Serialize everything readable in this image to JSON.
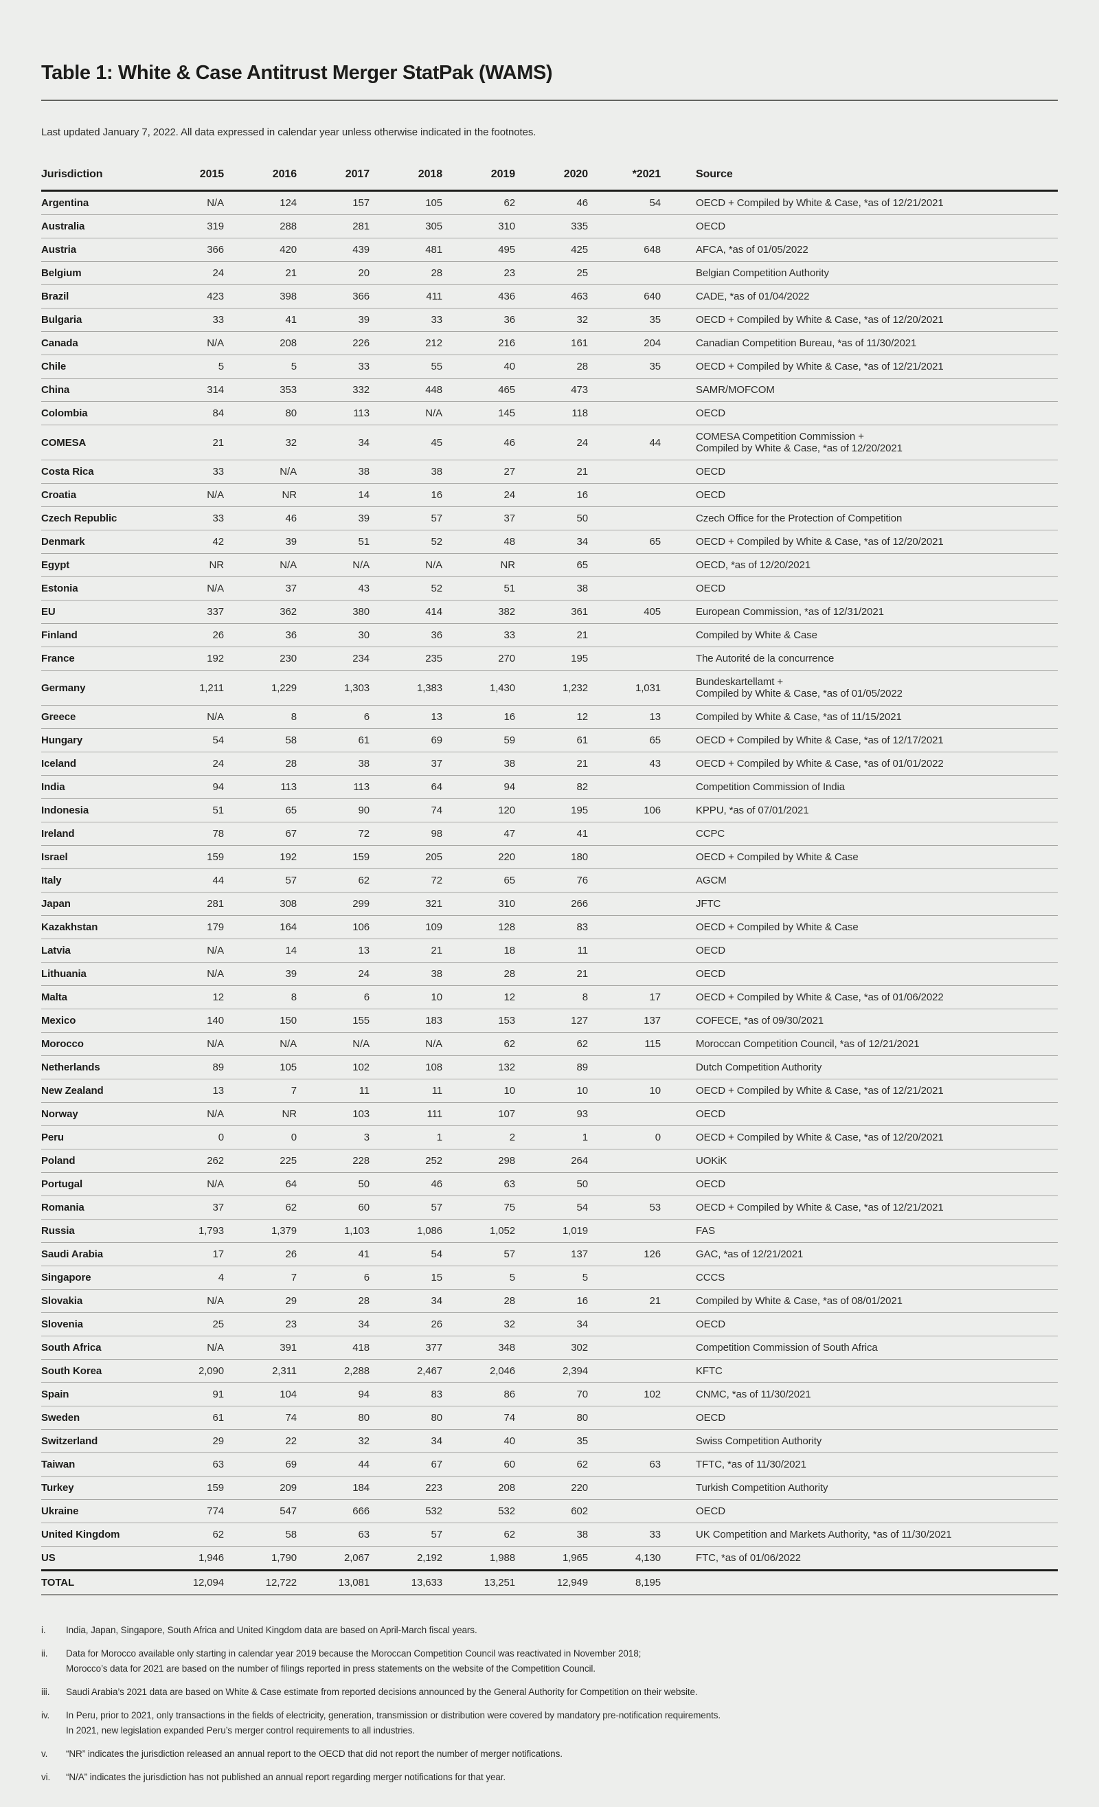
{
  "page": {
    "title": "Table 1: White & Case Antitrust Merger StatPak (WAMS)",
    "subtitle": "Last updated January 7, 2022. All data expressed in calendar year unless otherwise indicated in the footnotes."
  },
  "colors": {
    "background": "#edeeec",
    "text": "#1d1d1b",
    "text_secondary": "#2d2d2a",
    "rule_thin": "#a6a6a3",
    "rule_thick": "#1d1d1b",
    "rule_medium": "#8f8f8c",
    "title_rule": "#63645f"
  },
  "table": {
    "columns": [
      "Jurisdiction",
      "2015",
      "2016",
      "2017",
      "2018",
      "2019",
      "2020",
      "*2021",
      "Source"
    ],
    "rows": [
      {
        "jurisdiction": "Argentina",
        "values": [
          "N/A",
          "124",
          "157",
          "105",
          "62",
          "46",
          "54"
        ],
        "source": "OECD + Compiled by White & Case, *as of 12/21/2021"
      },
      {
        "jurisdiction": "Australia",
        "values": [
          "319",
          "288",
          "281",
          "305",
          "310",
          "335",
          ""
        ],
        "source": "OECD"
      },
      {
        "jurisdiction": "Austria",
        "values": [
          "366",
          "420",
          "439",
          "481",
          "495",
          "425",
          "648"
        ],
        "source": "AFCA, *as of 01/05/2022"
      },
      {
        "jurisdiction": "Belgium",
        "values": [
          "24",
          "21",
          "20",
          "28",
          "23",
          "25",
          ""
        ],
        "source": "Belgian Competition Authority"
      },
      {
        "jurisdiction": "Brazil",
        "values": [
          "423",
          "398",
          "366",
          "411",
          "436",
          "463",
          "640"
        ],
        "source": "CADE, *as of 01/04/2022"
      },
      {
        "jurisdiction": "Bulgaria",
        "values": [
          "33",
          "41",
          "39",
          "33",
          "36",
          "32",
          "35"
        ],
        "source": "OECD + Compiled by White & Case, *as of 12/20/2021"
      },
      {
        "jurisdiction": "Canada",
        "values": [
          "N/A",
          "208",
          "226",
          "212",
          "216",
          "161",
          "204"
        ],
        "source": "Canadian Competition Bureau, *as of 11/30/2021"
      },
      {
        "jurisdiction": "Chile",
        "values": [
          "5",
          "5",
          "33",
          "55",
          "40",
          "28",
          "35"
        ],
        "source": "OECD + Compiled by White & Case, *as of 12/21/2021"
      },
      {
        "jurisdiction": "China",
        "values": [
          "314",
          "353",
          "332",
          "448",
          "465",
          "473",
          ""
        ],
        "source": "SAMR/MOFCOM"
      },
      {
        "jurisdiction": "Colombia",
        "values": [
          "84",
          "80",
          "113",
          "N/A",
          "145",
          "118",
          ""
        ],
        "source": "OECD"
      },
      {
        "jurisdiction": "COMESA",
        "values": [
          "21",
          "32",
          "34",
          "45",
          "46",
          "24",
          "44"
        ],
        "source": "COMESA Competition Commission +\nCompiled by White & Case, *as of 12/20/2021"
      },
      {
        "jurisdiction": "Costa Rica",
        "values": [
          "33",
          "N/A",
          "38",
          "38",
          "27",
          "21",
          ""
        ],
        "source": "OECD"
      },
      {
        "jurisdiction": "Croatia",
        "values": [
          "N/A",
          "NR",
          "14",
          "16",
          "24",
          "16",
          ""
        ],
        "source": "OECD"
      },
      {
        "jurisdiction": "Czech Republic",
        "values": [
          "33",
          "46",
          "39",
          "57",
          "37",
          "50",
          ""
        ],
        "source": "Czech Office for the Protection of Competition"
      },
      {
        "jurisdiction": "Denmark",
        "values": [
          "42",
          "39",
          "51",
          "52",
          "48",
          "34",
          "65"
        ],
        "source": "OECD + Compiled by White & Case, *as of 12/20/2021"
      },
      {
        "jurisdiction": "Egypt",
        "values": [
          "NR",
          "N/A",
          "N/A",
          "N/A",
          "NR",
          "65",
          ""
        ],
        "source": "OECD, *as of 12/20/2021"
      },
      {
        "jurisdiction": "Estonia",
        "values": [
          "N/A",
          "37",
          "43",
          "52",
          "51",
          "38",
          ""
        ],
        "source": "OECD"
      },
      {
        "jurisdiction": "EU",
        "values": [
          "337",
          "362",
          "380",
          "414",
          "382",
          "361",
          "405"
        ],
        "source": "European Commission, *as of 12/31/2021"
      },
      {
        "jurisdiction": "Finland",
        "values": [
          "26",
          "36",
          "30",
          "36",
          "33",
          "21",
          ""
        ],
        "source": "Compiled by White & Case"
      },
      {
        "jurisdiction": "France",
        "values": [
          "192",
          "230",
          "234",
          "235",
          "270",
          "195",
          ""
        ],
        "source": "The Autorité de la concurrence"
      },
      {
        "jurisdiction": "Germany",
        "values": [
          "1,211",
          "1,229",
          "1,303",
          "1,383",
          "1,430",
          "1,232",
          "1,031"
        ],
        "source": "Bundeskartellamt +\nCompiled by White & Case, *as of 01/05/2022"
      },
      {
        "jurisdiction": "Greece",
        "values": [
          "N/A",
          "8",
          "6",
          "13",
          "16",
          "12",
          "13"
        ],
        "source": "Compiled by White & Case, *as of 11/15/2021"
      },
      {
        "jurisdiction": "Hungary",
        "values": [
          "54",
          "58",
          "61",
          "69",
          "59",
          "61",
          "65"
        ],
        "source": "OECD + Compiled by White & Case, *as of 12/17/2021"
      },
      {
        "jurisdiction": "Iceland",
        "values": [
          "24",
          "28",
          "38",
          "37",
          "38",
          "21",
          "43"
        ],
        "source": "OECD + Compiled by White & Case, *as of 01/01/2022"
      },
      {
        "jurisdiction": "India",
        "values": [
          "94",
          "113",
          "113",
          "64",
          "94",
          "82",
          ""
        ],
        "source": "Competition Commission of India"
      },
      {
        "jurisdiction": "Indonesia",
        "values": [
          "51",
          "65",
          "90",
          "74",
          "120",
          "195",
          "106"
        ],
        "source": "KPPU, *as of 07/01/2021"
      },
      {
        "jurisdiction": "Ireland",
        "values": [
          "78",
          "67",
          "72",
          "98",
          "47",
          "41",
          ""
        ],
        "source": "CCPC"
      },
      {
        "jurisdiction": "Israel",
        "values": [
          "159",
          "192",
          "159",
          "205",
          "220",
          "180",
          ""
        ],
        "source": "OECD + Compiled by White & Case"
      },
      {
        "jurisdiction": "Italy",
        "values": [
          "44",
          "57",
          "62",
          "72",
          "65",
          "76",
          ""
        ],
        "source": "AGCM"
      },
      {
        "jurisdiction": "Japan",
        "values": [
          "281",
          "308",
          "299",
          "321",
          "310",
          "266",
          ""
        ],
        "source": "JFTC"
      },
      {
        "jurisdiction": "Kazakhstan",
        "values": [
          "179",
          "164",
          "106",
          "109",
          "128",
          "83",
          ""
        ],
        "source": "OECD + Compiled by White & Case"
      },
      {
        "jurisdiction": "Latvia",
        "values": [
          "N/A",
          "14",
          "13",
          "21",
          "18",
          "11",
          ""
        ],
        "source": "OECD"
      },
      {
        "jurisdiction": "Lithuania",
        "values": [
          "N/A",
          "39",
          "24",
          "38",
          "28",
          "21",
          ""
        ],
        "source": "OECD"
      },
      {
        "jurisdiction": "Malta",
        "values": [
          "12",
          "8",
          "6",
          "10",
          "12",
          "8",
          "17"
        ],
        "source": "OECD + Compiled by White & Case, *as of 01/06/2022"
      },
      {
        "jurisdiction": "Mexico",
        "values": [
          "140",
          "150",
          "155",
          "183",
          "153",
          "127",
          "137"
        ],
        "source": "COFECE, *as of 09/30/2021"
      },
      {
        "jurisdiction": "Morocco",
        "values": [
          "N/A",
          "N/A",
          "N/A",
          "N/A",
          "62",
          "62",
          "115"
        ],
        "source": "Moroccan Competition Council, *as of 12/21/2021"
      },
      {
        "jurisdiction": "Netherlands",
        "values": [
          "89",
          "105",
          "102",
          "108",
          "132",
          "89",
          ""
        ],
        "source": "Dutch Competition Authority"
      },
      {
        "jurisdiction": "New Zealand",
        "values": [
          "13",
          "7",
          "11",
          "11",
          "10",
          "10",
          "10"
        ],
        "source": "OECD + Compiled by White & Case, *as of 12/21/2021"
      },
      {
        "jurisdiction": "Norway",
        "values": [
          "N/A",
          "NR",
          "103",
          "111",
          "107",
          "93",
          ""
        ],
        "source": "OECD"
      },
      {
        "jurisdiction": "Peru",
        "values": [
          "0",
          "0",
          "3",
          "1",
          "2",
          "1",
          "0"
        ],
        "source": "OECD + Compiled by White & Case, *as of 12/20/2021"
      },
      {
        "jurisdiction": "Poland",
        "values": [
          "262",
          "225",
          "228",
          "252",
          "298",
          "264",
          ""
        ],
        "source": "UOKiK"
      },
      {
        "jurisdiction": "Portugal",
        "values": [
          "N/A",
          "64",
          "50",
          "46",
          "63",
          "50",
          ""
        ],
        "source": "OECD"
      },
      {
        "jurisdiction": "Romania",
        "values": [
          "37",
          "62",
          "60",
          "57",
          "75",
          "54",
          "53"
        ],
        "source": "OECD + Compiled by White & Case, *as of 12/21/2021"
      },
      {
        "jurisdiction": "Russia",
        "values": [
          "1,793",
          "1,379",
          "1,103",
          "1,086",
          "1,052",
          "1,019",
          ""
        ],
        "source": "FAS"
      },
      {
        "jurisdiction": "Saudi Arabia",
        "values": [
          "17",
          "26",
          "41",
          "54",
          "57",
          "137",
          "126"
        ],
        "source": "GAC, *as of 12/21/2021"
      },
      {
        "jurisdiction": "Singapore",
        "values": [
          "4",
          "7",
          "6",
          "15",
          "5",
          "5",
          ""
        ],
        "source": "CCCS"
      },
      {
        "jurisdiction": "Slovakia",
        "values": [
          "N/A",
          "29",
          "28",
          "34",
          "28",
          "16",
          "21"
        ],
        "source": "Compiled by White & Case, *as of 08/01/2021"
      },
      {
        "jurisdiction": "Slovenia",
        "values": [
          "25",
          "23",
          "34",
          "26",
          "32",
          "34",
          ""
        ],
        "source": "OECD"
      },
      {
        "jurisdiction": "South Africa",
        "values": [
          "N/A",
          "391",
          "418",
          "377",
          "348",
          "302",
          ""
        ],
        "source": "Competition Commission of South Africa"
      },
      {
        "jurisdiction": "South Korea",
        "values": [
          "2,090",
          "2,311",
          "2,288",
          "2,467",
          "2,046",
          "2,394",
          ""
        ],
        "source": "KFTC"
      },
      {
        "jurisdiction": "Spain",
        "values": [
          "91",
          "104",
          "94",
          "83",
          "86",
          "70",
          "102"
        ],
        "source": "CNMC, *as of 11/30/2021"
      },
      {
        "jurisdiction": "Sweden",
        "values": [
          "61",
          "74",
          "80",
          "80",
          "74",
          "80",
          ""
        ],
        "source": "OECD"
      },
      {
        "jurisdiction": "Switzerland",
        "values": [
          "29",
          "22",
          "32",
          "34",
          "40",
          "35",
          ""
        ],
        "source": "Swiss Competition Authority"
      },
      {
        "jurisdiction": "Taiwan",
        "values": [
          "63",
          "69",
          "44",
          "67",
          "60",
          "62",
          "63"
        ],
        "source": "TFTC, *as of 11/30/2021"
      },
      {
        "jurisdiction": "Turkey",
        "values": [
          "159",
          "209",
          "184",
          "223",
          "208",
          "220",
          ""
        ],
        "source": "Turkish Competition Authority"
      },
      {
        "jurisdiction": "Ukraine",
        "values": [
          "774",
          "547",
          "666",
          "532",
          "532",
          "602",
          ""
        ],
        "source": "OECD"
      },
      {
        "jurisdiction": "United Kingdom",
        "values": [
          "62",
          "58",
          "63",
          "57",
          "62",
          "38",
          "33"
        ],
        "source": "UK Competition and Markets Authority, *as of 11/30/2021"
      },
      {
        "jurisdiction": "US",
        "values": [
          "1,946",
          "1,790",
          "2,067",
          "2,192",
          "1,988",
          "1,965",
          "4,130"
        ],
        "source": "FTC, *as of 01/06/2022"
      }
    ],
    "total": {
      "label": "TOTAL",
      "values": [
        "12,094",
        "12,722",
        "13,081",
        "13,633",
        "13,251",
        "12,949",
        "8,195"
      ],
      "source": ""
    }
  },
  "footnotes": [
    {
      "marker": "i.",
      "text": "India, Japan, Singapore, South Africa and United Kingdom data are based on April-March fiscal years."
    },
    {
      "marker": "ii.",
      "text": "Data for Morocco available only starting in calendar year 2019 because the Moroccan Competition Council was reactivated in November 2018;\nMorocco’s data for 2021 are based on the number of filings reported in press statements on the website of the Competition Council."
    },
    {
      "marker": "iii.",
      "text": "Saudi Arabia’s 2021 data are based on White & Case estimate from reported decisions announced by the General Authority for Competition on their website."
    },
    {
      "marker": "iv.",
      "text": "In Peru, prior to 2021, only transactions in the fields of electricity, generation, transmission or distribution were covered by mandatory pre-notification requirements.\nIn 2021, new legislation expanded Peru’s merger control requirements to all industries."
    },
    {
      "marker": "v.",
      "text": "“NR” indicates the jurisdiction released an annual report to the OECD that did not report the number of merger notifications."
    },
    {
      "marker": "vi.",
      "text": "“N/A” indicates the jurisdiction has not published an annual report regarding merger notifications for that year."
    }
  ]
}
